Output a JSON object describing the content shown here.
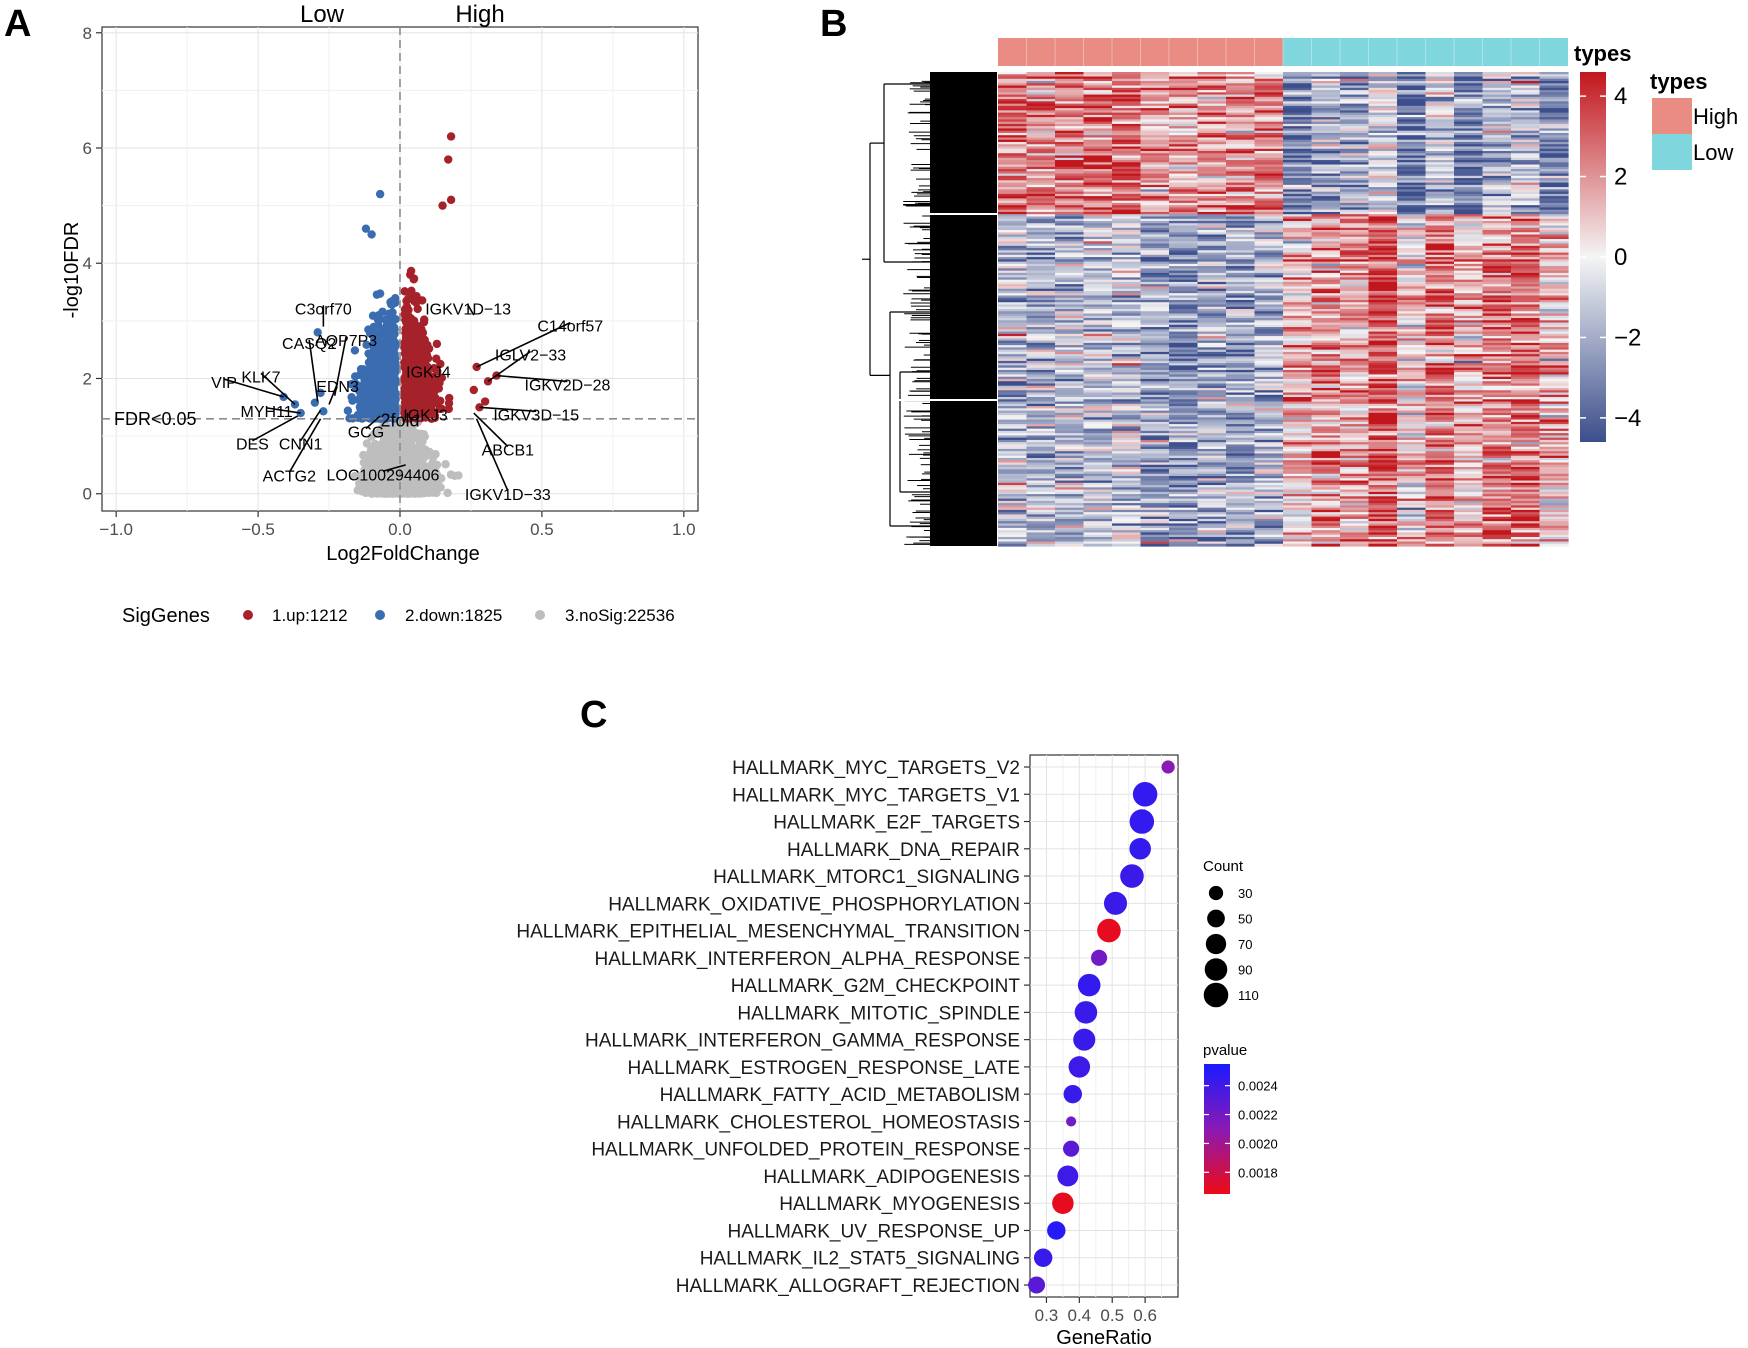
{
  "panels": {
    "a": "A",
    "b": "B",
    "c": "C"
  },
  "chart_data": [
    {
      "type": "scatter",
      "title": "",
      "header_left": "Low",
      "header_right": "High",
      "xlabel": "Log2FoldChange",
      "ylabel": "-log10FDR",
      "xlim": [
        -1.05,
        1.05
      ],
      "ylim": [
        -0.3,
        8.1
      ],
      "x_ticks": [
        -1.0,
        -0.5,
        0.0,
        0.5,
        1.0
      ],
      "x_tick_labels": [
        "−1.0",
        "−0.5",
        "0.0",
        "0.5",
        "1.0"
      ],
      "y_ticks": [
        0,
        2,
        4,
        6,
        8
      ],
      "y_tick_labels": [
        "0",
        "2",
        "4",
        "6",
        "8"
      ],
      "threshold_y": 1.3,
      "threshold_label": "FDR<0.05",
      "fold_label": "2fold",
      "legend": {
        "title": "SigGenes",
        "entries": [
          {
            "label": "1.up:1212",
            "color": "#a5222a"
          },
          {
            "label": "2.down:1825",
            "color": "#3b6cb0"
          },
          {
            "label": "3.noSig:22536",
            "color": "#bebebe"
          }
        ]
      },
      "highlight_points": [
        {
          "x": 0.18,
          "y": 6.2,
          "group": "up"
        },
        {
          "x": 0.17,
          "y": 5.8,
          "group": "up"
        },
        {
          "x": 0.15,
          "y": 5.0,
          "group": "up"
        },
        {
          "x": 0.18,
          "y": 5.1,
          "group": "up"
        },
        {
          "x": -0.07,
          "y": 5.2,
          "group": "down"
        },
        {
          "x": -0.12,
          "y": 4.6,
          "group": "down"
        },
        {
          "x": -0.1,
          "y": 4.5,
          "group": "down"
        }
      ],
      "labels": [
        {
          "text": "C3orf70",
          "x": -0.27,
          "y": 3.2
        },
        {
          "text": "CASQ2",
          "x": -0.32,
          "y": 2.6
        },
        {
          "text": "AQP7P3",
          "x": -0.19,
          "y": 2.65
        },
        {
          "text": "EDN3",
          "x": -0.22,
          "y": 1.85
        },
        {
          "text": "VIP",
          "x": -0.62,
          "y": 1.92
        },
        {
          "text": "KLK7",
          "x": -0.49,
          "y": 2.02
        },
        {
          "text": "MYH11",
          "x": -0.47,
          "y": 1.42
        },
        {
          "text": "DES",
          "x": -0.52,
          "y": 0.85
        },
        {
          "text": "CNN1",
          "x": -0.35,
          "y": 0.85
        },
        {
          "text": "GCG",
          "x": -0.12,
          "y": 1.06
        },
        {
          "text": "ACTG2",
          "x": -0.39,
          "y": 0.3
        },
        {
          "text": "2fold",
          "x": 0.0,
          "y": 1.25
        },
        {
          "text": "IGKV1D−13",
          "x": 0.24,
          "y": 3.2
        },
        {
          "text": "C14orf57",
          "x": 0.6,
          "y": 2.9
        },
        {
          "text": "IGLV2−33",
          "x": 0.46,
          "y": 2.4
        },
        {
          "text": "IGKJ4",
          "x": 0.1,
          "y": 2.1
        },
        {
          "text": "IGKV2D−28",
          "x": 0.59,
          "y": 1.88
        },
        {
          "text": "IGKJ3",
          "x": 0.09,
          "y": 1.36
        },
        {
          "text": "IGKV3D−15",
          "x": 0.48,
          "y": 1.36
        },
        {
          "text": "ABCB1",
          "x": 0.38,
          "y": 0.75
        },
        {
          "text": "LOC100294406",
          "x": -0.06,
          "y": 0.32
        },
        {
          "text": "IGKV1D−33",
          "x": 0.38,
          "y": -0.02
        }
      ]
    },
    {
      "type": "heatmap",
      "title": "",
      "annotation_title": "types",
      "legend_title": "types",
      "groups": [
        {
          "name": "High",
          "color": "#e88c84"
        },
        {
          "name": "Low",
          "color": "#7fd6dc"
        }
      ],
      "samples_per_group": [
        10,
        10
      ],
      "color_scale": {
        "min": -4.6,
        "max": 4.6,
        "ticks": [
          4,
          2,
          0,
          -2,
          -4
        ],
        "tick_labels": [
          "4",
          "2",
          "0",
          "−2",
          "−4"
        ],
        "low_color": "#3c4e8c",
        "mid_color": "#f5f5f5",
        "high_color": "#c2161d"
      },
      "row_pattern": "genes up in High cluster on top, genes up in Low cluster below; values z-scored"
    },
    {
      "type": "scatter",
      "title": "",
      "xlabel": "GeneRatio",
      "ylabel": "",
      "xlim": [
        0.25,
        0.7
      ],
      "x_ticks": [
        0.3,
        0.4,
        0.5,
        0.6
      ],
      "x_tick_labels": [
        "0.3",
        "0.4",
        "0.5",
        "0.6"
      ],
      "size_legend": {
        "title": "Count",
        "values": [
          30,
          50,
          70,
          90,
          110
        ],
        "labels": [
          "30",
          "50",
          "70",
          "90",
          "110"
        ]
      },
      "color_legend": {
        "title": "pvalue",
        "ticks": [
          0.0024,
          0.0022,
          0.002,
          0.0018
        ],
        "tick_labels": [
          "0.0024",
          "0.0022",
          "0.0020",
          "0.0018"
        ],
        "min": 0.00165,
        "max": 0.00255
      },
      "terms": [
        {
          "name": "HALLMARK_MYC_TARGETS_V2",
          "ratio": 0.67,
          "count": 25,
          "pvalue": 0.0021
        },
        {
          "name": "HALLMARK_MYC_TARGETS_V1",
          "ratio": 0.6,
          "count": 110,
          "pvalue": 0.00245
        },
        {
          "name": "HALLMARK_E2F_TARGETS",
          "ratio": 0.59,
          "count": 110,
          "pvalue": 0.00245
        },
        {
          "name": "HALLMARK_DNA_REPAIR",
          "ratio": 0.585,
          "count": 80,
          "pvalue": 0.00245
        },
        {
          "name": "HALLMARK_MTORC1_SIGNALING",
          "ratio": 0.56,
          "count": 100,
          "pvalue": 0.00242
        },
        {
          "name": "HALLMARK_OXIDATIVE_PHOSPHORYLATION",
          "ratio": 0.51,
          "count": 95,
          "pvalue": 0.00242
        },
        {
          "name": "HALLMARK_EPITHELIAL_MESENCHYMAL_TRANSITION",
          "ratio": 0.49,
          "count": 100,
          "pvalue": 0.00168
        },
        {
          "name": "HALLMARK_INTERFERON_ALPHA_RESPONSE",
          "ratio": 0.46,
          "count": 40,
          "pvalue": 0.0022
        },
        {
          "name": "HALLMARK_G2M_CHECKPOINT",
          "ratio": 0.43,
          "count": 90,
          "pvalue": 0.00245
        },
        {
          "name": "HALLMARK_MITOTIC_SPINDLE",
          "ratio": 0.42,
          "count": 90,
          "pvalue": 0.00243
        },
        {
          "name": "HALLMARK_INTERFERON_GAMMA_RESPONSE",
          "ratio": 0.415,
          "count": 85,
          "pvalue": 0.00243
        },
        {
          "name": "HALLMARK_ESTROGEN_RESPONSE_LATE",
          "ratio": 0.4,
          "count": 80,
          "pvalue": 0.0024
        },
        {
          "name": "HALLMARK_FATTY_ACID_METABOLISM",
          "ratio": 0.38,
          "count": 55,
          "pvalue": 0.00243
        },
        {
          "name": "HALLMARK_CHOLESTEROL_HOMEOSTASIS",
          "ratio": 0.375,
          "count": 15,
          "pvalue": 0.0022
        },
        {
          "name": "HALLMARK_UNFOLDED_PROTEIN_RESPONSE",
          "ratio": 0.375,
          "count": 40,
          "pvalue": 0.0023
        },
        {
          "name": "HALLMARK_ADIPOGENESIS",
          "ratio": 0.365,
          "count": 75,
          "pvalue": 0.0024
        },
        {
          "name": "HALLMARK_MYOGENESIS",
          "ratio": 0.35,
          "count": 80,
          "pvalue": 0.00168
        },
        {
          "name": "HALLMARK_UV_RESPONSE_UP",
          "ratio": 0.33,
          "count": 55,
          "pvalue": 0.0025
        },
        {
          "name": "HALLMARK_IL2_STAT5_SIGNALING",
          "ratio": 0.29,
          "count": 55,
          "pvalue": 0.00243
        },
        {
          "name": "HALLMARK_ALLOGRAFT_REJECTION",
          "ratio": 0.27,
          "count": 45,
          "pvalue": 0.0023
        }
      ]
    }
  ]
}
